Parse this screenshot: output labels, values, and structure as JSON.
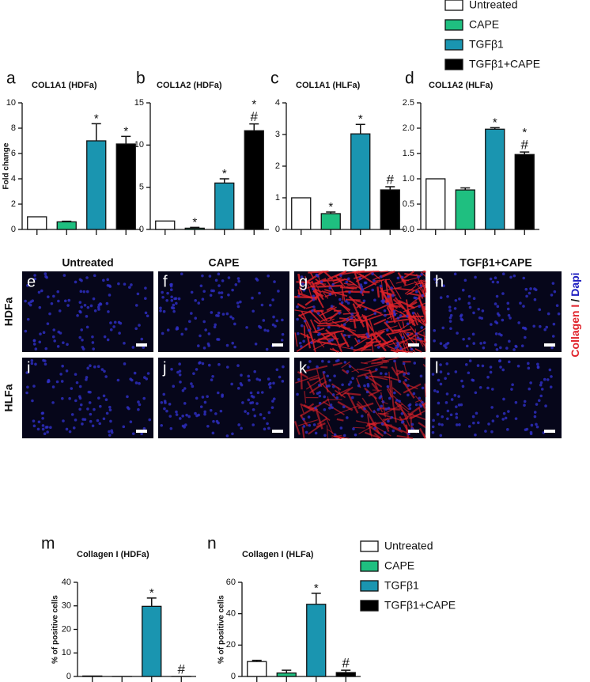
{
  "legend": [
    {
      "name": "Untreated",
      "color": "#ffffff"
    },
    {
      "name": "CAPE",
      "color": "#1fbf80"
    },
    {
      "name": "TGFβ1",
      "color": "#1a95b0"
    },
    {
      "name": "TGFβ1+CAPE",
      "color": "#000000"
    }
  ],
  "chart_data": [
    {
      "type": "bar",
      "label": "a",
      "title": "COL1A1 (HDFa)",
      "ylabel": "Fold change",
      "values": [
        1,
        0.6,
        7.0,
        6.75
      ],
      "errors": [
        0,
        0.05,
        1.35,
        0.6
      ],
      "annotations": [
        [],
        [],
        [
          "*"
        ],
        [
          "*"
        ]
      ],
      "ylim": [
        0,
        10
      ],
      "yticks": [
        0,
        2,
        4,
        6,
        8,
        10
      ]
    },
    {
      "type": "bar",
      "label": "b",
      "title": "COL1A2 (HDFa)",
      "values": [
        1,
        0.15,
        5.5,
        11.7
      ],
      "errors": [
        0,
        0.1,
        0.5,
        0.8
      ],
      "annotations": [
        [],
        [
          "*"
        ],
        [
          "*"
        ],
        [
          "*",
          "#"
        ]
      ],
      "ylim": [
        0,
        15
      ],
      "yticks": [
        0,
        5,
        10,
        15
      ]
    },
    {
      "type": "bar",
      "label": "c",
      "title": "COL1A1 (HLFa)",
      "values": [
        1,
        0.5,
        3.02,
        1.25
      ],
      "errors": [
        0,
        0.05,
        0.3,
        0.1
      ],
      "annotations": [
        [],
        [
          "*"
        ],
        [
          "*"
        ],
        [
          "#"
        ]
      ],
      "ylim": [
        0,
        4
      ],
      "yticks": [
        0,
        1,
        2,
        3,
        4
      ]
    },
    {
      "type": "bar",
      "label": "d",
      "title": "COL1A2 (HLFa)",
      "values": [
        1.0,
        0.78,
        1.98,
        1.48
      ],
      "errors": [
        0,
        0.04,
        0.03,
        0.05
      ],
      "annotations": [
        [],
        [],
        [
          "*"
        ],
        [
          "*",
          "#"
        ]
      ],
      "ylim": [
        0,
        2.5
      ],
      "yticks": [
        {
          "value": 0,
          "label": "0.0"
        },
        0.5,
        {
          "value": 1,
          "label": "1.0"
        },
        1.5,
        {
          "value": 2,
          "label": "2.0"
        },
        2.5
      ]
    },
    {
      "type": "bar",
      "label": "m",
      "title": "Collagen I (HDFa)",
      "ylabel": "% of positive cells",
      "values": [
        0.2,
        0,
        29.8,
        0
      ],
      "errors": [
        0,
        0,
        3.5,
        0
      ],
      "annotations": [
        [],
        [],
        [
          "*"
        ],
        [
          "#"
        ]
      ],
      "ylim": [
        0,
        40
      ],
      "yticks": [
        0,
        10,
        20,
        30,
        40
      ]
    },
    {
      "type": "bar",
      "label": "n",
      "title": "Collagen I (HLFa)",
      "ylabel": "% of positive cells",
      "values": [
        9.5,
        2.2,
        46,
        2.5
      ],
      "errors": [
        0.8,
        1.8,
        7,
        1.5
      ],
      "annotations": [
        [],
        [],
        [
          "*"
        ],
        [
          "#"
        ]
      ],
      "ylim": [
        0,
        60
      ],
      "yticks": [
        0,
        20,
        40,
        60
      ]
    }
  ],
  "micrographs": {
    "columns": [
      "Untreated",
      "CAPE",
      "TGFβ1",
      "TGFβ1+CAPE"
    ],
    "rows": [
      "HDFa",
      "HLFa"
    ],
    "letters": [
      [
        "e",
        "f",
        "g",
        "h"
      ],
      [
        "i",
        "j",
        "k",
        "l"
      ]
    ],
    "stain_label": {
      "red": "Collagen I",
      "separator": "/",
      "blue": "Dapi"
    }
  }
}
